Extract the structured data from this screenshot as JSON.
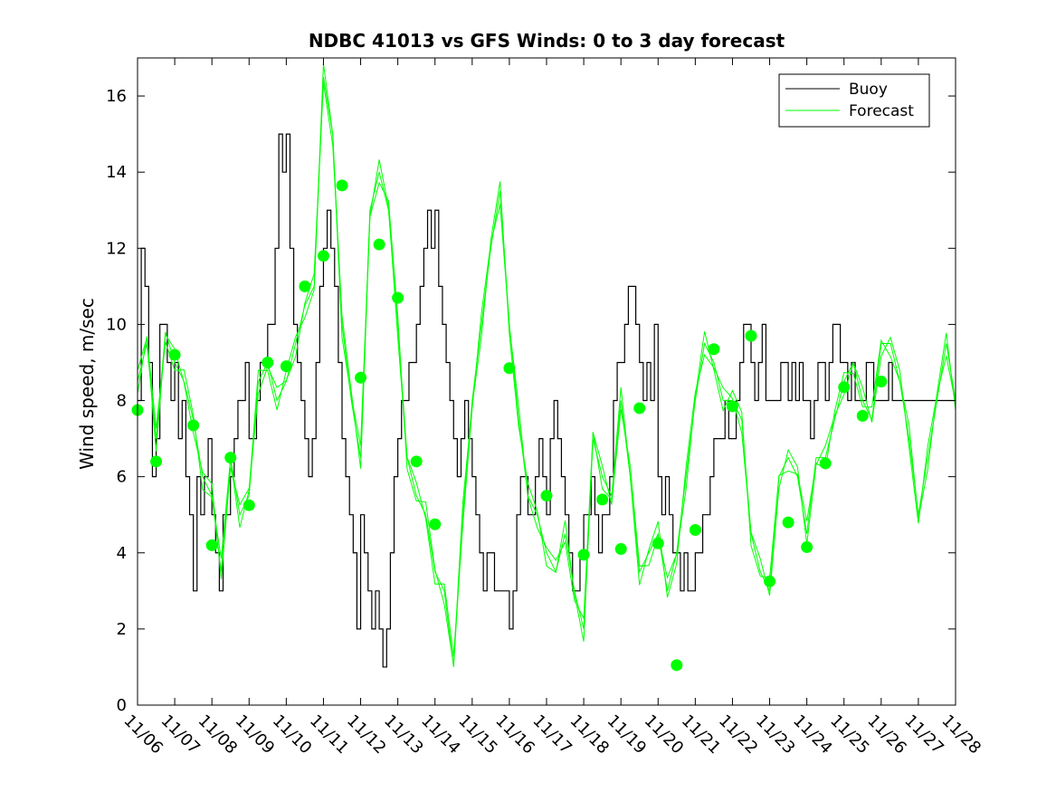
{
  "chart_data": {
    "type": "line",
    "title": "NDBC 41013 vs GFS Winds: 0 to 3 day forecast",
    "xlabel": "",
    "ylabel": "Wind speed, m/sec",
    "xlim": [
      "11/06",
      "11/28"
    ],
    "ylim": [
      0,
      17
    ],
    "y_ticks": [
      0,
      2,
      4,
      6,
      8,
      10,
      12,
      14,
      16
    ],
    "x_ticks": [
      "11/06",
      "11/07",
      "11/08",
      "11/09",
      "11/10",
      "11/11",
      "11/12",
      "11/13",
      "11/14",
      "11/15",
      "11/16",
      "11/17",
      "11/18",
      "11/19",
      "11/20",
      "11/21",
      "11/22",
      "11/23",
      "11/24",
      "11/25",
      "11/26",
      "11/27",
      "11/28"
    ],
    "grid": false,
    "legend": {
      "position": "top-right",
      "entries": [
        "Buoy",
        "Forecast"
      ]
    },
    "colors": {
      "buoy": "#000000",
      "forecast": "#00ff00"
    },
    "series": [
      {
        "name": "Buoy",
        "style": "stepped line",
        "x": [
          0,
          0.1,
          0.2,
          0.3,
          0.4,
          0.5,
          0.6,
          0.7,
          0.8,
          0.9,
          1.0,
          1.1,
          1.2,
          1.3,
          1.4,
          1.5,
          1.6,
          1.7,
          1.8,
          1.9,
          2.0,
          2.1,
          2.2,
          2.3,
          2.4,
          2.5,
          2.6,
          2.7,
          2.8,
          2.9,
          3.0,
          3.1,
          3.2,
          3.3,
          3.4,
          3.5,
          3.6,
          3.7,
          3.8,
          3.9,
          4.0,
          4.1,
          4.2,
          4.3,
          4.4,
          4.5,
          4.6,
          4.7,
          4.8,
          4.9,
          5.0,
          5.1,
          5.2,
          5.3,
          5.4,
          5.5,
          5.6,
          5.7,
          5.8,
          5.9,
          6.0,
          6.1,
          6.2,
          6.3,
          6.4,
          6.5,
          6.6,
          6.7,
          6.8,
          6.9,
          7.0,
          7.1,
          7.2,
          7.3,
          7.4,
          7.5,
          7.6,
          7.7,
          7.8,
          7.9,
          8.0,
          8.1,
          8.2,
          8.3,
          8.4,
          8.5,
          8.6,
          8.7,
          8.8,
          8.9,
          9.0,
          9.1,
          9.2,
          9.3,
          9.4,
          9.5,
          9.6,
          9.7,
          9.8,
          9.9,
          10.0,
          10.1,
          10.2,
          10.3,
          10.4,
          10.5,
          10.6,
          10.7,
          10.8,
          10.9,
          11.0,
          11.1,
          11.2,
          11.3,
          11.4,
          11.5,
          11.6,
          11.7,
          11.8,
          11.9,
          12.0,
          12.1,
          12.2,
          12.3,
          12.4,
          12.5,
          12.6,
          12.7,
          12.8,
          12.9,
          13.0,
          13.1,
          13.2,
          13.3,
          13.4,
          13.5,
          13.6,
          13.7,
          13.8,
          13.9,
          14.0,
          14.1,
          14.2,
          14.3,
          14.4,
          14.5,
          14.6,
          14.7,
          14.8,
          14.9,
          15.0,
          15.1,
          15.2,
          15.3,
          15.4,
          15.5,
          15.6,
          15.7,
          15.8,
          15.9,
          16.0,
          16.1,
          16.2,
          16.3,
          16.4,
          16.5,
          16.6,
          16.7,
          16.8,
          16.9,
          17.0,
          17.1,
          17.2,
          17.3,
          17.4,
          17.5,
          17.6,
          17.7,
          17.8,
          17.9,
          18.0,
          18.1,
          18.2,
          18.3,
          18.4,
          18.5,
          18.6,
          18.7,
          18.8,
          18.9,
          19.0,
          19.1,
          19.2,
          19.3,
          19.4,
          19.5,
          19.6,
          19.7,
          19.8,
          19.9,
          20.0,
          20.1,
          20.2,
          20.3,
          20.4,
          20.5,
          20.6,
          20.7,
          20.8,
          20.9,
          21.0,
          21.1,
          21.2,
          21.3,
          21.4,
          21.5,
          21.6,
          21.7,
          21.8,
          21.9,
          22.0
        ],
        "y": [
          8,
          12,
          11,
          9,
          6,
          7,
          10,
          10,
          9,
          8,
          9,
          7,
          8,
          6,
          5,
          3,
          6,
          5,
          6,
          7,
          5,
          4,
          3,
          5,
          5,
          6,
          7,
          8,
          8,
          9,
          7,
          7,
          8,
          9,
          9,
          10,
          10,
          12,
          15,
          14,
          15,
          12,
          10,
          9,
          8,
          7,
          6,
          7,
          9,
          11,
          12,
          13,
          12,
          11,
          9,
          7,
          6,
          5,
          4,
          2,
          5,
          4,
          3,
          2,
          3,
          2,
          1,
          2,
          4,
          6,
          7,
          8,
          8,
          9,
          9,
          10,
          11,
          12,
          13,
          12,
          13,
          11,
          10,
          9,
          8,
          7,
          6,
          7,
          8,
          7,
          6,
          5,
          4,
          3,
          4,
          4,
          3,
          3,
          3,
          3,
          2,
          3,
          5,
          6,
          6,
          5,
          5,
          6,
          7,
          6,
          5,
          7,
          8,
          7,
          6,
          5,
          4,
          3,
          3,
          4,
          5,
          5,
          6,
          5,
          4,
          5,
          5,
          6,
          8,
          9,
          9,
          10,
          11,
          11,
          10,
          9,
          8,
          9,
          8,
          10,
          6,
          5,
          6,
          5,
          4,
          4,
          3,
          4,
          3,
          3,
          4,
          4,
          5,
          5,
          6,
          7,
          7,
          7,
          8,
          7,
          7,
          8,
          9,
          10,
          10,
          9,
          8,
          9,
          10,
          8,
          8,
          8,
          8,
          9,
          9,
          8,
          9,
          8,
          9,
          8,
          8,
          7,
          8,
          9,
          9,
          8,
          9,
          10,
          10,
          9,
          9,
          8,
          9,
          8,
          8,
          8,
          9,
          9,
          8,
          8,
          8,
          8,
          9,
          8,
          8,
          8,
          8,
          8,
          8,
          8,
          8,
          8,
          8,
          8,
          8,
          8,
          8,
          8,
          8,
          8,
          8
        ]
      },
      {
        "name": "Forecast",
        "style": "lines (multiple forecast runs)",
        "x": [
          0,
          0.25,
          0.5,
          0.75,
          1.0,
          1.25,
          1.5,
          1.75,
          2.0,
          2.25,
          2.5,
          2.75,
          3.0,
          3.25,
          3.5,
          3.75,
          4.0,
          4.25,
          4.5,
          4.75,
          5.0,
          5.25,
          5.5,
          5.75,
          6.0,
          6.25,
          6.5,
          6.75,
          7.0,
          7.25,
          7.5,
          7.75,
          8.0,
          8.25,
          8.5,
          8.75,
          9.0,
          9.25,
          9.5,
          9.75,
          10.0,
          10.25,
          10.5,
          10.75,
          11.0,
          11.25,
          11.5,
          11.75,
          12.0,
          12.25,
          12.5,
          12.75,
          13.0,
          13.25,
          13.5,
          13.75,
          14.0,
          14.25,
          14.5,
          14.75,
          15.0,
          15.25,
          15.5,
          15.75,
          16.0,
          16.25,
          16.5,
          16.75,
          17.0,
          17.25,
          17.5,
          17.75,
          18.0,
          18.25,
          18.5,
          18.75,
          19.0,
          19.25,
          19.5,
          19.75,
          20.0,
          20.25,
          20.5,
          20.75,
          21.0,
          21.25,
          21.5,
          21.75,
          22.0
        ],
        "y": [
          8.5,
          9.5,
          7,
          9.8,
          9,
          8.5,
          7.5,
          6,
          5.5,
          3.5,
          6.5,
          5,
          5.5,
          8.5,
          9,
          8,
          8.5,
          9.5,
          10.5,
          11,
          16.5,
          15,
          10,
          8,
          6.5,
          13,
          14,
          13,
          10,
          6.5,
          5.5,
          5,
          3.5,
          3,
          1,
          5,
          8,
          10,
          12,
          13.5,
          10,
          7.5,
          5.5,
          5,
          4,
          3.5,
          4.5,
          3,
          2,
          7,
          6,
          5.5,
          8,
          6,
          3.5,
          4,
          4.5,
          3,
          4,
          6,
          8,
          9.5,
          9,
          8,
          8,
          7.5,
          4.5,
          3.5,
          3,
          6,
          6.5,
          6,
          4.5,
          6.5,
          6.5,
          7.5,
          8.5,
          9,
          8,
          7.5,
          9.5,
          9.5,
          8.5,
          7,
          5,
          6.5,
          8,
          9.5,
          8
        ]
      },
      {
        "name": "Forecast",
        "style": "markers (analysis points)",
        "x": [
          0,
          0.5,
          1.0,
          1.5,
          2.0,
          2.5,
          3.0,
          3.5,
          4.0,
          4.5,
          5.0,
          5.5,
          6.0,
          6.5,
          7.0,
          7.5,
          8.0,
          8.5,
          10.0,
          11.0,
          11.5,
          12.0,
          12.5,
          13.0,
          13.5,
          14.0,
          14.5,
          15.0,
          15.5,
          16.0,
          16.5,
          17.0,
          17.5,
          18.0,
          18.5,
          19.0,
          19.5,
          20.0,
          20.5,
          21.0
        ],
        "y": [
          7.75,
          6.4,
          9.2,
          7.35,
          4.2,
          6.5,
          5.25,
          9,
          8.9,
          11,
          11.8,
          13.65,
          8.6,
          12.1,
          10.7,
          6.4,
          4.75,
          null,
          8.85,
          5.5,
          null,
          3.95,
          5.4,
          4.1,
          7.8,
          4.25,
          1.05,
          4.6,
          9.35,
          7.85,
          9.7,
          3.25,
          4.8,
          4.15,
          6.35,
          8.35,
          7.6,
          8.5,
          null,
          null
        ]
      }
    ]
  }
}
